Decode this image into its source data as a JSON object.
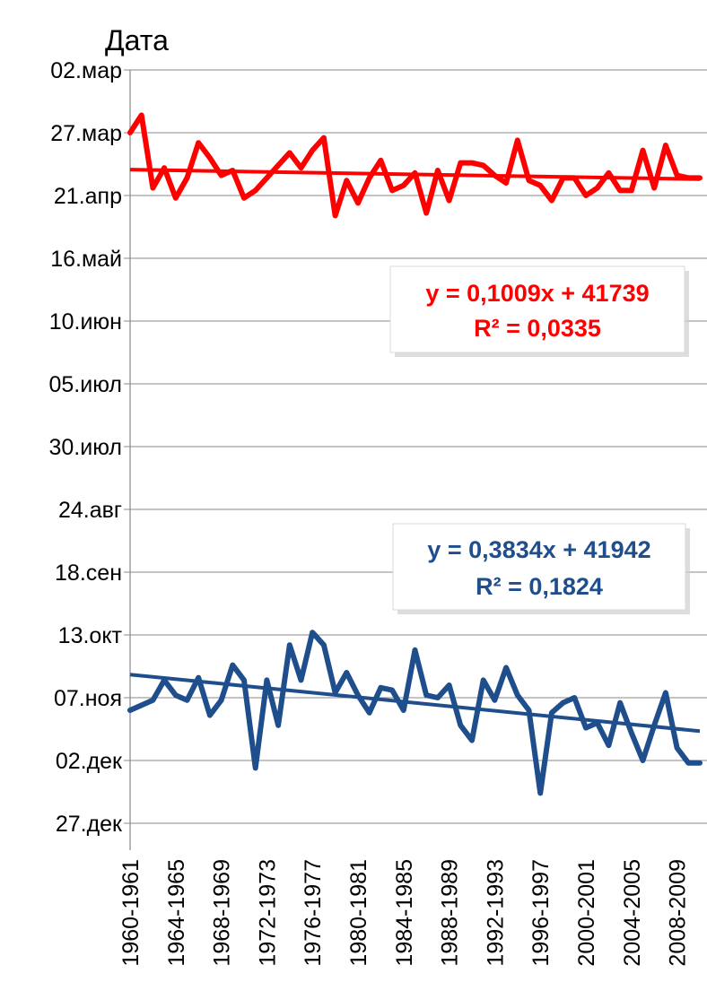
{
  "chart_data": {
    "type": "line",
    "ylabel": "Дата",
    "y_ticks": [
      "02.мар",
      "27.мар",
      "21.апр",
      "16.май",
      "10.июн",
      "05.июл",
      "30.июл",
      "24.авг",
      "18.сен",
      "13.окт",
      "07.ноя",
      "02.дек",
      "27.дек"
    ],
    "y_tick_days": [
      0,
      25,
      50,
      75,
      100,
      125,
      150,
      175,
      200,
      225,
      250,
      275,
      300
    ],
    "y_axis_inverted": true,
    "x_ticks": [
      "1960-1961",
      "1964-1965",
      "1968-1969",
      "1972-1973",
      "1976-1977",
      "1980-1981",
      "1984-1985",
      "1988-1989",
      "1992-1993",
      "1996-1997",
      "2000-2001",
      "2004-2005",
      "2008-2009"
    ],
    "x_tick_years": [
      1960,
      1964,
      1968,
      1972,
      1976,
      1980,
      1984,
      1988,
      1992,
      1996,
      2000,
      2004,
      2008
    ],
    "x_range": [
      1960,
      2010
    ],
    "grid": "horizontal",
    "legend": "none",
    "series": [
      {
        "color": "#ff0000",
        "years": [
          1960,
          1961,
          1962,
          1963,
          1964,
          1965,
          1966,
          1967,
          1968,
          1969,
          1970,
          1971,
          1972,
          1973,
          1974,
          1975,
          1976,
          1977,
          1978,
          1979,
          1980,
          1981,
          1982,
          1983,
          1984,
          1985,
          1986,
          1987,
          1988,
          1989,
          1990,
          1991,
          1992,
          1993,
          1994,
          1995,
          1996,
          1997,
          1998,
          1999,
          2000,
          2001,
          2002,
          2003,
          2004,
          2005,
          2006,
          2007,
          2008,
          2009,
          2010
        ],
        "values": [
          25,
          18,
          47,
          39,
          51,
          43,
          29,
          35,
          42,
          40,
          51,
          48,
          43,
          38,
          33,
          39,
          32,
          27,
          58,
          44,
          53,
          43,
          36,
          48,
          46,
          41,
          57,
          40,
          52,
          37,
          37,
          38,
          42,
          45,
          28,
          44,
          46,
          52,
          43,
          43,
          50,
          47,
          41,
          48,
          48,
          32,
          47,
          30,
          42,
          43,
          43
        ]
      },
      {
        "color": "#1f4e8c",
        "years": [
          1960,
          1961,
          1962,
          1963,
          1964,
          1965,
          1966,
          1967,
          1968,
          1969,
          1970,
          1971,
          1972,
          1973,
          1974,
          1975,
          1976,
          1977,
          1978,
          1979,
          1980,
          1981,
          1982,
          1983,
          1984,
          1985,
          1986,
          1987,
          1988,
          1989,
          1990,
          1991,
          1992,
          1993,
          1994,
          1995,
          1996,
          1997,
          1998,
          1999,
          2000,
          2001,
          2002,
          2003,
          2004,
          2005,
          2006,
          2007,
          2008,
          2009,
          2010
        ],
        "values": [
          255,
          253,
          251,
          243,
          249,
          251,
          242,
          257,
          251,
          237,
          243,
          278,
          243,
          261,
          229,
          243,
          224,
          229,
          248,
          240,
          249,
          256,
          246,
          247,
          255,
          231,
          249,
          250,
          245,
          261,
          267,
          243,
          251,
          238,
          249,
          255,
          288,
          256,
          252,
          250,
          262,
          260,
          269,
          252,
          264,
          275,
          261,
          248,
          270,
          276,
          276
        ]
      }
    ],
    "trendlines": [
      {
        "color": "#ff0000",
        "start": [
          1960,
          39.7
        ],
        "end": [
          2010,
          43.5
        ],
        "equation": "y = 0,1009x + 41739",
        "r2": "R² = 0,0335"
      },
      {
        "color": "#1f4e8c",
        "start": [
          1960,
          240.8
        ],
        "end": [
          2010,
          263.3
        ],
        "equation": "y = 0,3834x + 41942",
        "r2": "R² = 0,1824"
      }
    ]
  }
}
